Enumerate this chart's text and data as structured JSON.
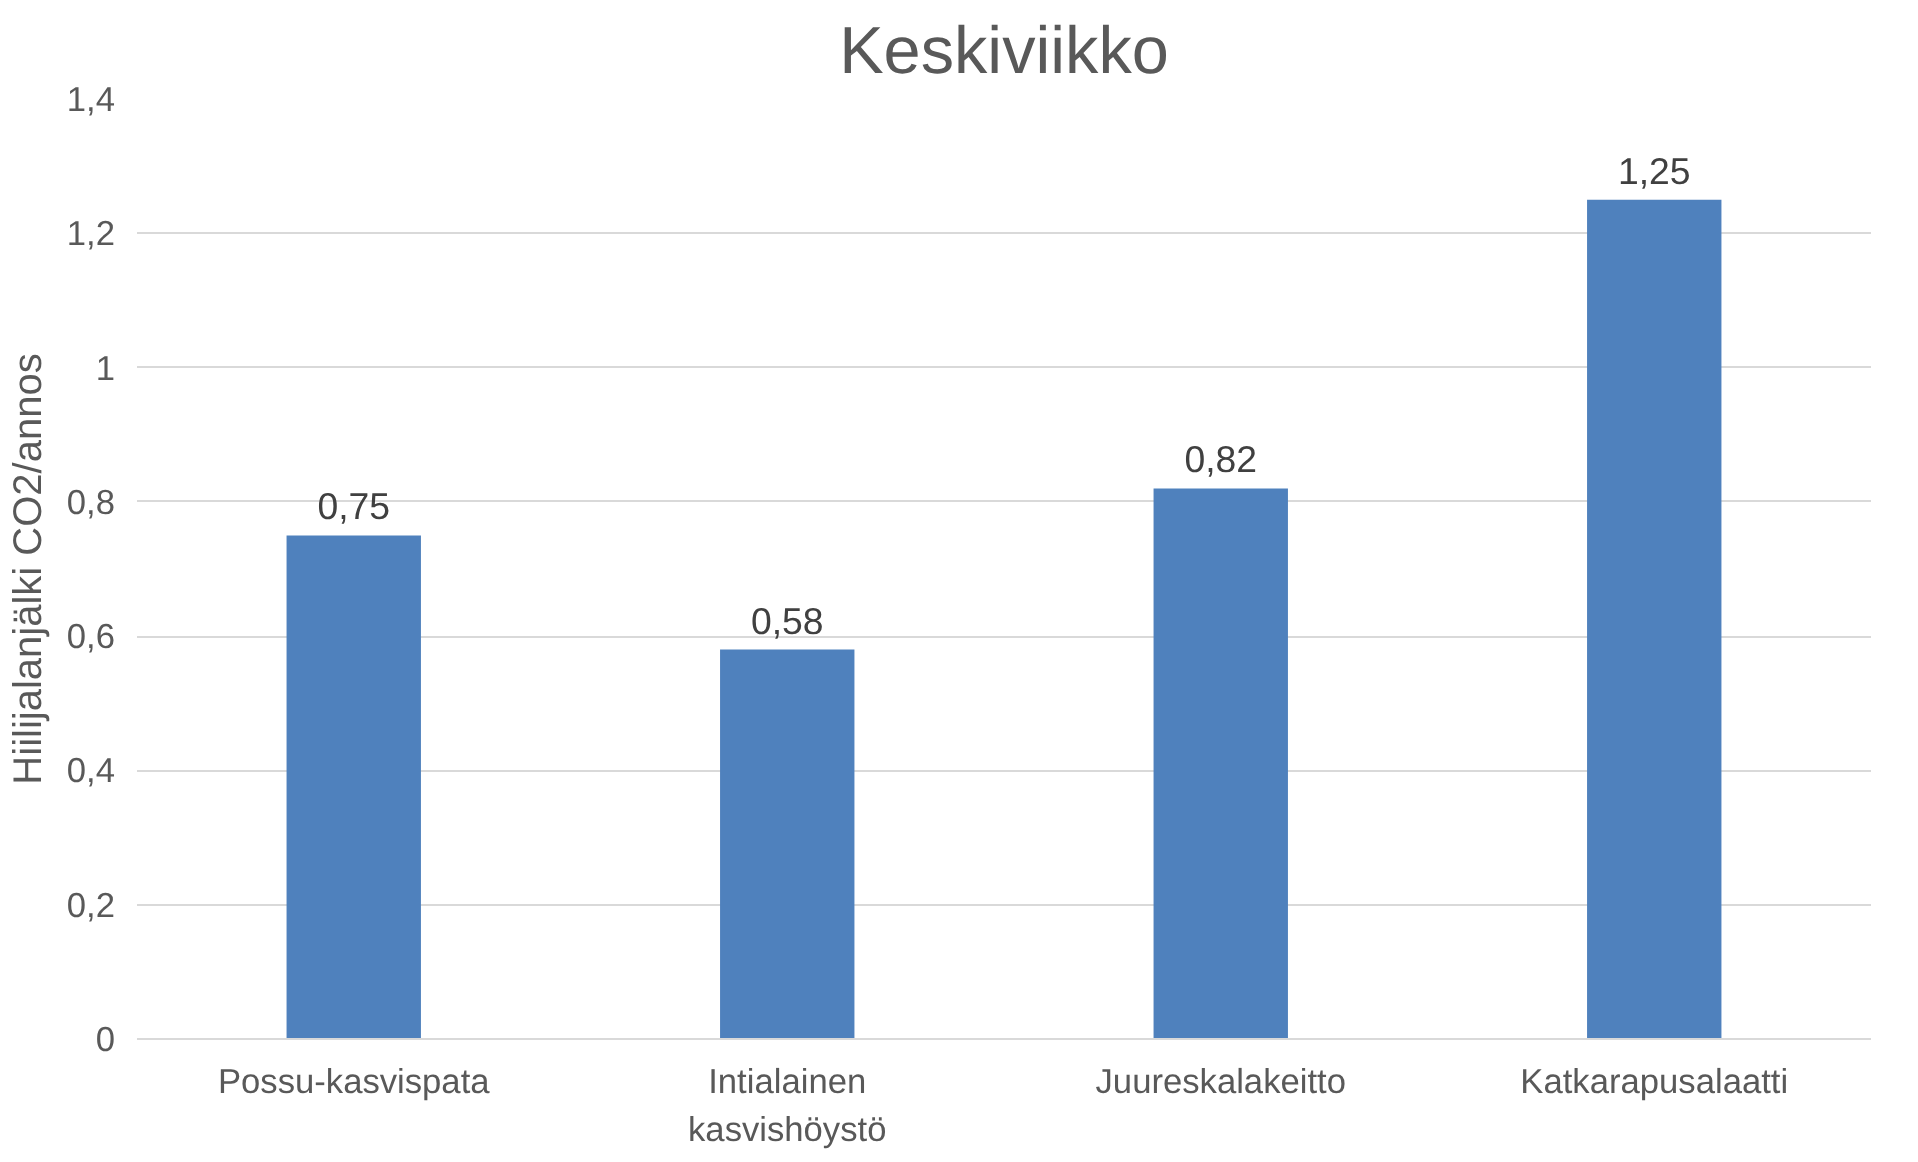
{
  "chart_data": {
    "type": "bar",
    "title": "Keskiviikko",
    "ylabel": "Hiilijalanjälki CO2/annos",
    "categories": [
      "Possu-kasvispata",
      "Intialainen\nkasvishöystö",
      "Juureskalakeitto",
      "Katkarapusalaatti"
    ],
    "values": [
      0.75,
      0.58,
      0.82,
      1.25
    ],
    "value_labels": [
      "0,75",
      "0,58",
      "0,82",
      "1,25"
    ],
    "color": "#4f81bd",
    "ylim": [
      0,
      1.4
    ],
    "yticks": [
      {
        "value": 0,
        "label": "0"
      },
      {
        "value": 0.2,
        "label": "0,2"
      },
      {
        "value": 0.4,
        "label": "0,4"
      },
      {
        "value": 0.6,
        "label": "0,6"
      },
      {
        "value": 0.8,
        "label": "0,8"
      },
      {
        "value": 1,
        "label": "1"
      },
      {
        "value": 1.2,
        "label": "1,2"
      },
      {
        "value": 1.4,
        "label": "1,4"
      }
    ],
    "grid": "y"
  }
}
